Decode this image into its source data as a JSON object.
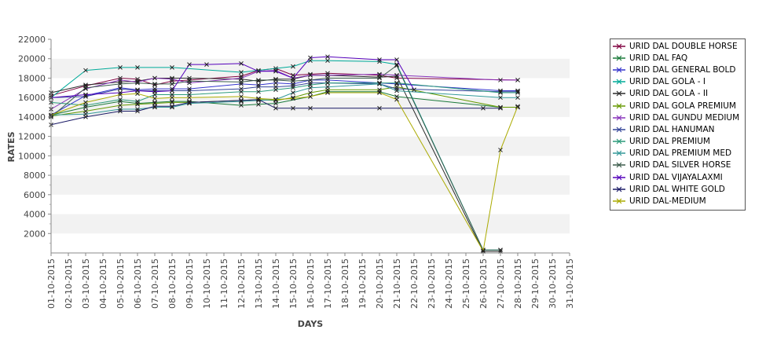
{
  "chart_data": {
    "type": "line",
    "xlabel": "DAYS",
    "ylabel": "RATES",
    "ylim": [
      0,
      22000
    ],
    "yticks": [
      2000,
      4000,
      6000,
      8000,
      10000,
      12000,
      14000,
      16000,
      18000,
      20000,
      22000
    ],
    "categories": [
      "01-10-2015",
      "02-10-2015",
      "03-10-2015",
      "04-10-2015",
      "05-10-2015",
      "06-10-2015",
      "07-10-2015",
      "08-10-2015",
      "09-10-2015",
      "10-10-2015",
      "11-10-2015",
      "12-10-2015",
      "13-10-2015",
      "14-10-2015",
      "15-10-2015",
      "16-10-2015",
      "17-10-2015",
      "18-10-2015",
      "19-10-2015",
      "20-10-2015",
      "21-10-2015",
      "22-10-2015",
      "23-10-2015",
      "24-10-2015",
      "25-10-2015",
      "26-10-2015",
      "27-10-2015",
      "28-10-2015",
      "29-10-2015",
      "30-10-2015",
      "31-10-2015"
    ],
    "grid": true,
    "legend_position": "right",
    "series": [
      {
        "name": "URID DAL DOUBLE HORSE",
        "color": "#800040",
        "points": [
          [
            0,
            16200
          ],
          [
            2,
            17200
          ],
          [
            4,
            18000
          ],
          [
            5,
            17900
          ],
          [
            6,
            17300
          ],
          [
            7,
            17700
          ],
          [
            8,
            17800
          ],
          [
            11,
            18200
          ],
          [
            12,
            18800
          ],
          [
            13,
            19000
          ],
          [
            14,
            18300
          ],
          [
            15,
            18400
          ],
          [
            16,
            18500
          ],
          [
            19,
            18300
          ],
          [
            20,
            18000
          ],
          [
            27,
            17800
          ]
        ]
      },
      {
        "name": "URID DAL FAQ",
        "color": "#1a7a3a",
        "points": [
          [
            0,
            14200
          ],
          [
            2,
            15000
          ],
          [
            4,
            15600
          ],
          [
            5,
            15400
          ],
          [
            6,
            15500
          ],
          [
            7,
            15600
          ],
          [
            8,
            15600
          ],
          [
            11,
            15200
          ],
          [
            12,
            15300
          ],
          [
            13,
            15400
          ],
          [
            15,
            16100
          ],
          [
            16,
            16600
          ],
          [
            19,
            16600
          ],
          [
            20,
            16100
          ],
          [
            26,
            15000
          ],
          [
            27,
            15000
          ]
        ]
      },
      {
        "name": "URID DAL GENERAL BOLD",
        "color": "#3333cc",
        "points": [
          [
            0,
            14200
          ],
          [
            2,
            16200
          ],
          [
            4,
            17000
          ],
          [
            5,
            16800
          ],
          [
            6,
            16900
          ],
          [
            7,
            16900
          ],
          [
            8,
            16900
          ],
          [
            11,
            17400
          ],
          [
            12,
            17300
          ],
          [
            13,
            17500
          ],
          [
            14,
            17400
          ],
          [
            15,
            17800
          ],
          [
            16,
            17800
          ],
          [
            19,
            17500
          ],
          [
            20,
            17400
          ],
          [
            26,
            16700
          ],
          [
            27,
            16700
          ]
        ]
      },
      {
        "name": "URID DAL GOLA - I",
        "color": "#00aa99",
        "points": [
          [
            0,
            16000
          ],
          [
            2,
            18800
          ],
          [
            4,
            19100
          ],
          [
            5,
            19100
          ],
          [
            7,
            19100
          ],
          [
            11,
            18600
          ],
          [
            14,
            19200
          ],
          [
            15,
            19800
          ],
          [
            16,
            19800
          ],
          [
            19,
            19700
          ],
          [
            20,
            19400
          ],
          [
            25,
            300
          ],
          [
            26,
            300
          ]
        ]
      },
      {
        "name": "URID DAL GOLA - II",
        "color": "#2b2b2b",
        "points": [
          [
            0,
            16500
          ],
          [
            2,
            17300
          ],
          [
            4,
            17600
          ],
          [
            5,
            17700
          ],
          [
            6,
            18000
          ],
          [
            7,
            18000
          ],
          [
            8,
            18000
          ],
          [
            11,
            17900
          ],
          [
            12,
            17700
          ],
          [
            13,
            17900
          ],
          [
            14,
            17900
          ],
          [
            15,
            18300
          ],
          [
            16,
            18300
          ],
          [
            19,
            18100
          ],
          [
            20,
            18200
          ],
          [
            25,
            150
          ],
          [
            26,
            150
          ]
        ]
      },
      {
        "name": "URID DAL GOLA PREMIUM",
        "color": "#669900",
        "points": [
          [
            0,
            14100
          ],
          [
            2,
            14600
          ],
          [
            4,
            15200
          ],
          [
            5,
            15300
          ],
          [
            6,
            15400
          ],
          [
            7,
            15500
          ],
          [
            8,
            15500
          ],
          [
            11,
            15700
          ],
          [
            12,
            15800
          ],
          [
            13,
            15700
          ],
          [
            14,
            16000
          ],
          [
            15,
            16500
          ],
          [
            16,
            16800
          ],
          [
            19,
            16800
          ],
          [
            20,
            17100
          ],
          [
            26,
            15000
          ],
          [
            27,
            15000
          ]
        ]
      },
      {
        "name": "URID DAL GUNDU MEDIUM",
        "color": "#8833bb",
        "points": [
          [
            0,
            14800
          ],
          [
            2,
            16900
          ],
          [
            4,
            17800
          ],
          [
            5,
            17600
          ],
          [
            6,
            18000
          ],
          [
            7,
            17900
          ],
          [
            8,
            17500
          ],
          [
            11,
            18000
          ],
          [
            12,
            18700
          ],
          [
            13,
            18800
          ],
          [
            14,
            18000
          ],
          [
            15,
            18300
          ],
          [
            16,
            18300
          ],
          [
            19,
            18400
          ],
          [
            20,
            18300
          ],
          [
            26,
            17800
          ],
          [
            27,
            17800
          ]
        ]
      },
      {
        "name": "URID DAL HANUMAN",
        "color": "#334499",
        "points": [
          [
            0,
            16000
          ],
          [
            2,
            16100
          ],
          [
            4,
            16900
          ],
          [
            5,
            16700
          ],
          [
            6,
            16700
          ],
          [
            7,
            16700
          ],
          [
            8,
            16700
          ],
          [
            11,
            16900
          ],
          [
            12,
            17100
          ],
          [
            13,
            17100
          ],
          [
            14,
            17200
          ],
          [
            15,
            17500
          ],
          [
            16,
            17500
          ],
          [
            19,
            17400
          ],
          [
            20,
            16900
          ],
          [
            26,
            16600
          ],
          [
            27,
            16600
          ]
        ]
      },
      {
        "name": "URID DAL PREMIUM",
        "color": "#2a9a7a",
        "points": [
          [
            0,
            15500
          ],
          [
            2,
            15200
          ],
          [
            4,
            15800
          ],
          [
            5,
            15600
          ],
          [
            6,
            16300
          ],
          [
            7,
            16300
          ],
          [
            8,
            16300
          ],
          [
            11,
            16600
          ],
          [
            12,
            16600
          ],
          [
            13,
            16800
          ],
          [
            14,
            17000
          ],
          [
            15,
            17300
          ],
          [
            16,
            17500
          ],
          [
            19,
            17500
          ],
          [
            20,
            17500
          ],
          [
            26,
            16500
          ],
          [
            27,
            16500
          ]
        ]
      },
      {
        "name": "URID DAL PREMIUM MED",
        "color": "#339999",
        "points": [
          [
            0,
            14200
          ],
          [
            2,
            14300
          ],
          [
            4,
            14800
          ],
          [
            5,
            14800
          ],
          [
            6,
            15000
          ],
          [
            7,
            15000
          ],
          [
            8,
            15400
          ],
          [
            11,
            15600
          ],
          [
            12,
            15700
          ],
          [
            13,
            15800
          ],
          [
            14,
            16500
          ],
          [
            15,
            17000
          ],
          [
            16,
            17100
          ],
          [
            19,
            17400
          ],
          [
            20,
            16700
          ],
          [
            26,
            16000
          ],
          [
            27,
            16000
          ]
        ]
      },
      {
        "name": "URID DAL SILVER HORSE",
        "color": "#3a5a4a",
        "points": [
          [
            0,
            14000
          ],
          [
            2,
            17000
          ],
          [
            4,
            17400
          ],
          [
            5,
            17500
          ],
          [
            6,
            17400
          ],
          [
            7,
            17400
          ],
          [
            8,
            17700
          ],
          [
            11,
            17600
          ],
          [
            12,
            17800
          ],
          [
            13,
            17800
          ],
          [
            14,
            17700
          ],
          [
            15,
            17800
          ],
          [
            16,
            18000
          ],
          [
            19,
            18000
          ],
          [
            20,
            19300
          ],
          [
            25,
            300
          ],
          [
            26,
            300
          ]
        ]
      },
      {
        "name": "URID DAL VIJAYALAXMI",
        "color": "#5500bb",
        "points": [
          [
            0,
            16000
          ],
          [
            2,
            16300
          ],
          [
            4,
            16500
          ],
          [
            5,
            16700
          ],
          [
            6,
            16600
          ],
          [
            7,
            16700
          ],
          [
            8,
            19400
          ],
          [
            9,
            19400
          ],
          [
            11,
            19500
          ],
          [
            12,
            18700
          ],
          [
            13,
            18700
          ],
          [
            14,
            18000
          ],
          [
            15,
            20100
          ],
          [
            16,
            20200
          ],
          [
            19,
            19900
          ],
          [
            20,
            19900
          ],
          [
            21,
            16800
          ]
        ]
      },
      {
        "name": "URID DAL WHITE GOLD",
        "color": "#1a1a66",
        "points": [
          [
            0,
            13200
          ],
          [
            2,
            14000
          ],
          [
            4,
            14600
          ],
          [
            5,
            14600
          ],
          [
            6,
            15100
          ],
          [
            7,
            15100
          ],
          [
            8,
            15500
          ],
          [
            11,
            15700
          ],
          [
            12,
            15800
          ],
          [
            13,
            14900
          ],
          [
            14,
            14900
          ],
          [
            15,
            14900
          ],
          [
            19,
            14900
          ],
          [
            25,
            14900
          ],
          [
            26,
            14900
          ]
        ]
      },
      {
        "name": "URID DAL-MEDIUM",
        "color": "#aaaa00",
        "points": [
          [
            0,
            14200
          ],
          [
            2,
            15500
          ],
          [
            4,
            16300
          ],
          [
            5,
            16400
          ],
          [
            6,
            15900
          ],
          [
            7,
            16000
          ],
          [
            8,
            16000
          ],
          [
            11,
            16100
          ],
          [
            12,
            15900
          ],
          [
            13,
            15800
          ],
          [
            14,
            15900
          ],
          [
            15,
            16100
          ],
          [
            16,
            16500
          ],
          [
            19,
            16500
          ],
          [
            20,
            15800
          ],
          [
            25,
            200
          ],
          [
            26,
            10600
          ],
          [
            27,
            15100
          ]
        ]
      }
    ]
  }
}
